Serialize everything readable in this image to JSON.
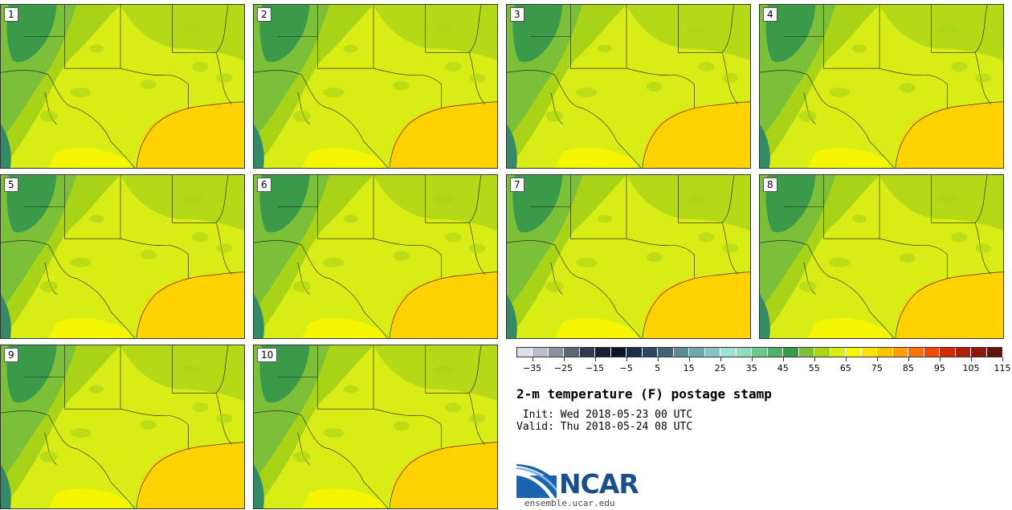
{
  "colors": {
    "yellow_green": "#d8ec16",
    "green": "#a9d317",
    "mid_green": "#7cc03a",
    "dark_green": "#3a9a4a",
    "teal": "#348a66",
    "gulf": "#ffd200",
    "light_yellow": "#f5f500",
    "border": "#1a1a1a"
  },
  "stamps": [
    {
      "label": "1"
    },
    {
      "label": "2"
    },
    {
      "label": "3"
    },
    {
      "label": "4"
    },
    {
      "label": "5"
    },
    {
      "label": "6"
    },
    {
      "label": "7"
    },
    {
      "label": "8"
    },
    {
      "label": "9"
    },
    {
      "label": "10"
    }
  ],
  "colorbar": {
    "swatches": [
      "#dcdfea",
      "#b9bcc9",
      "#8c91a0",
      "#5f6678",
      "#2e3850",
      "#161f33",
      "#0b1426",
      "#1c2f48",
      "#2c4761",
      "#3e6278",
      "#5a8c95",
      "#6fa8ac",
      "#87c5c4",
      "#98e3d6",
      "#8fdbba",
      "#6cc98c",
      "#4fb069",
      "#3a9a4a",
      "#7cc03a",
      "#abd317",
      "#d8ec16",
      "#f5f500",
      "#fbe30a",
      "#ffc400",
      "#ff9e00",
      "#ff7200",
      "#f24a00",
      "#d42a00",
      "#b01e0a",
      "#8e180d",
      "#651311"
    ],
    "ticks": [
      "−35",
      "−25",
      "−15",
      "−5",
      "5",
      "15",
      "25",
      "35",
      "45",
      "55",
      "65",
      "75",
      "85",
      "95",
      "105",
      "115"
    ]
  },
  "title": "2-m temperature (F) postage stamp",
  "init_text": " Init: Wed 2018-05-23 00 UTC",
  "valid_text": "Valid: Thu 2018-05-24 08 UTC",
  "logo": {
    "text": "NCAR",
    "url": "ensemble.ucar.edu"
  }
}
